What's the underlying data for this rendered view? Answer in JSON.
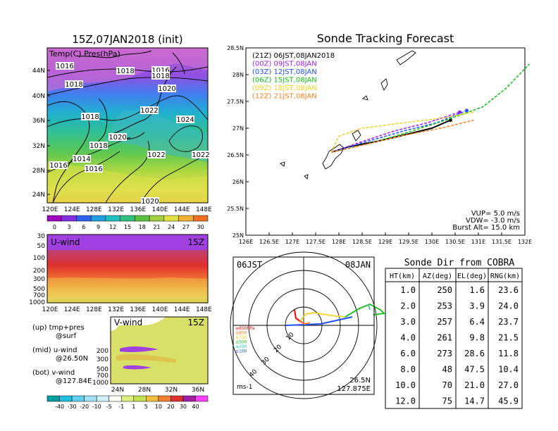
{
  "left": {
    "title": "15Z,07JAN2018 (init)",
    "map_label": "Temp(C) Pres(hPa)",
    "lat_ticks": [
      "44N",
      "40N",
      "36N",
      "32N",
      "28N",
      "24N"
    ],
    "lon_ticks": [
      "120E",
      "124E",
      "128E",
      "132E",
      "136E",
      "140E",
      "144E",
      "148E"
    ],
    "isobars": [
      {
        "text": "1016",
        "x": 92,
        "y": 96
      },
      {
        "text": "1018",
        "x": 178,
        "y": 103
      },
      {
        "text": "1016",
        "x": 228,
        "y": 102
      },
      {
        "text": "1018",
        "x": 228,
        "y": 110
      },
      {
        "text": "1018",
        "x": 105,
        "y": 122
      },
      {
        "text": "1020",
        "x": 237,
        "y": 128
      },
      {
        "text": "1022",
        "x": 212,
        "y": 159
      },
      {
        "text": "1018",
        "x": 128,
        "y": 168
      },
      {
        "text": "1024",
        "x": 263,
        "y": 172
      },
      {
        "text": "1020",
        "x": 167,
        "y": 197
      },
      {
        "text": "1018",
        "x": 140,
        "y": 209
      },
      {
        "text": "1022",
        "x": 222,
        "y": 222
      },
      {
        "text": "1022",
        "x": 285,
        "y": 222
      },
      {
        "text": "1014",
        "x": 116,
        "y": 228
      },
      {
        "text": "1016",
        "x": 83,
        "y": 237
      },
      {
        "text": "1016",
        "x": 133,
        "y": 242
      },
      {
        "text": "1020",
        "x": 213,
        "y": 288
      }
    ],
    "temp_colorbar": [
      "0",
      "3",
      "6",
      "9",
      "12",
      "15",
      "18",
      "21",
      "24",
      "27",
      "30"
    ],
    "u_panel": {
      "label": "U-wind",
      "time": "15Z",
      "p_ticks": [
        "30",
        "50",
        "100",
        "200",
        "300",
        "500",
        "700",
        "1000"
      ],
      "lon_ticks": [
        "120E",
        "124E",
        "128E",
        "132E",
        "136E",
        "140E",
        "144E",
        "148E"
      ]
    },
    "v_panel": {
      "label": "V-wind",
      "time": "15Z",
      "p_ticks": [
        "200",
        "300",
        "500",
        "700",
        "1000"
      ],
      "lat_ticks": [
        "24N",
        "28N",
        "32N",
        "36N"
      ]
    },
    "notes": [
      "(up) tmp+pres",
      "@surf",
      "(mid) u-wind",
      "@26.50N",
      "(bot) v-wind",
      "@127.84E"
    ],
    "wind_colorbar": [
      "-40",
      "-30",
      "-20",
      "-10",
      "-5",
      "-1",
      "1",
      "5",
      "10",
      "20",
      "30",
      "40"
    ]
  },
  "chart_data": [
    {
      "type": "line",
      "title": "Sonde Tracking Forecast",
      "xlim": [
        126,
        132
      ],
      "ylim": [
        25,
        28.5
      ],
      "x_ticks": [
        "126E",
        "126.5E",
        "127E",
        "127.5E",
        "128E",
        "128.5E",
        "129E",
        "129.5E",
        "130E",
        "130.5E",
        "131E",
        "131.5E",
        "132E"
      ],
      "y_ticks": [
        "25N",
        "25.5N",
        "26N",
        "26.5N",
        "27N",
        "27.5N",
        "28N",
        "28.5N"
      ],
      "series": [
        {
          "name": "(21Z) 06JST,08JAN2018",
          "color": "#000000",
          "x": [
            127.84,
            128.2,
            128.8,
            129.3,
            130.0,
            130.4
          ],
          "y": [
            26.55,
            26.65,
            26.75,
            26.85,
            27.0,
            27.15
          ]
        },
        {
          "name": "(00Z) 09JST,08JAN",
          "color": "#a020f0",
          "x": [
            127.84,
            128.5,
            129.2,
            129.9,
            130.6
          ],
          "y": [
            26.55,
            26.75,
            26.95,
            27.1,
            27.3
          ]
        },
        {
          "name": "(03Z) 12JST,08JAN",
          "color": "#2050ff",
          "x": [
            127.84,
            128.6,
            129.4,
            130.1,
            130.75
          ],
          "y": [
            26.55,
            26.75,
            26.95,
            27.1,
            27.33
          ]
        },
        {
          "name": "(06Z) 15JST,08JAN",
          "color": "#10c010",
          "x": [
            127.84,
            128.6,
            129.4,
            130.3,
            131.1,
            131.6,
            132.1
          ],
          "y": [
            26.55,
            26.7,
            26.9,
            27.15,
            27.4,
            27.75,
            28.2
          ]
        },
        {
          "name": "(09Z) 18JST,08JAN",
          "color": "#f0d020",
          "x": [
            127.84,
            128.0,
            128.5,
            129.4,
            130.3,
            130.9
          ],
          "y": [
            26.55,
            26.85,
            27.0,
            27.1,
            27.2,
            27.3
          ]
        },
        {
          "name": "(12Z) 21JST,08JAN",
          "color": "#ff8020",
          "x": [
            127.84,
            128.1,
            128.6,
            129.3,
            130.2,
            130.9
          ],
          "y": [
            26.55,
            26.6,
            26.7,
            26.85,
            27.0,
            27.15
          ]
        }
      ],
      "annotations": [
        "VUP= 5.0 m/s",
        "VDW= -3.0 m/s",
        "Burst Alt= 15.0 km"
      ]
    },
    {
      "type": "scatter",
      "subtype": "polar",
      "left_label": "06JST",
      "right_label": "08JAN",
      "rings": [
        "10",
        "20",
        "30",
        "40"
      ],
      "legend": [
        "≥850hPa",
        "≤850",
        "≤700",
        "≤500",
        "≤250",
        "≤100"
      ],
      "legend_colors": [
        "#ff0000",
        "#ff8020",
        "#f0d020",
        "#10c010",
        "#10c0c0",
        "#2050ff"
      ],
      "unit": "ms-1",
      "position": [
        "26.5N",
        "127.875E"
      ]
    },
    {
      "type": "table",
      "title": "Sonde Dir from COBRA",
      "columns": [
        "HT(km)",
        "AZ(deg)",
        "EL(deg)",
        "RNG(km)"
      ],
      "rows": [
        [
          "1.0",
          "250",
          "1.6",
          "23.6"
        ],
        [
          "2.0",
          "253",
          "3.9",
          "24.0"
        ],
        [
          "3.0",
          "257",
          "6.4",
          "23.7"
        ],
        [
          "4.0",
          "261",
          "9.8",
          "21.5"
        ],
        [
          "6.0",
          "273",
          "28.6",
          "11.8"
        ],
        [
          "8.0",
          "48",
          "47.5",
          "10.4"
        ],
        [
          "10.0",
          "70",
          "21.0",
          "27.0"
        ],
        [
          "12.0",
          "75",
          "14.7",
          "45.9"
        ]
      ]
    }
  ]
}
